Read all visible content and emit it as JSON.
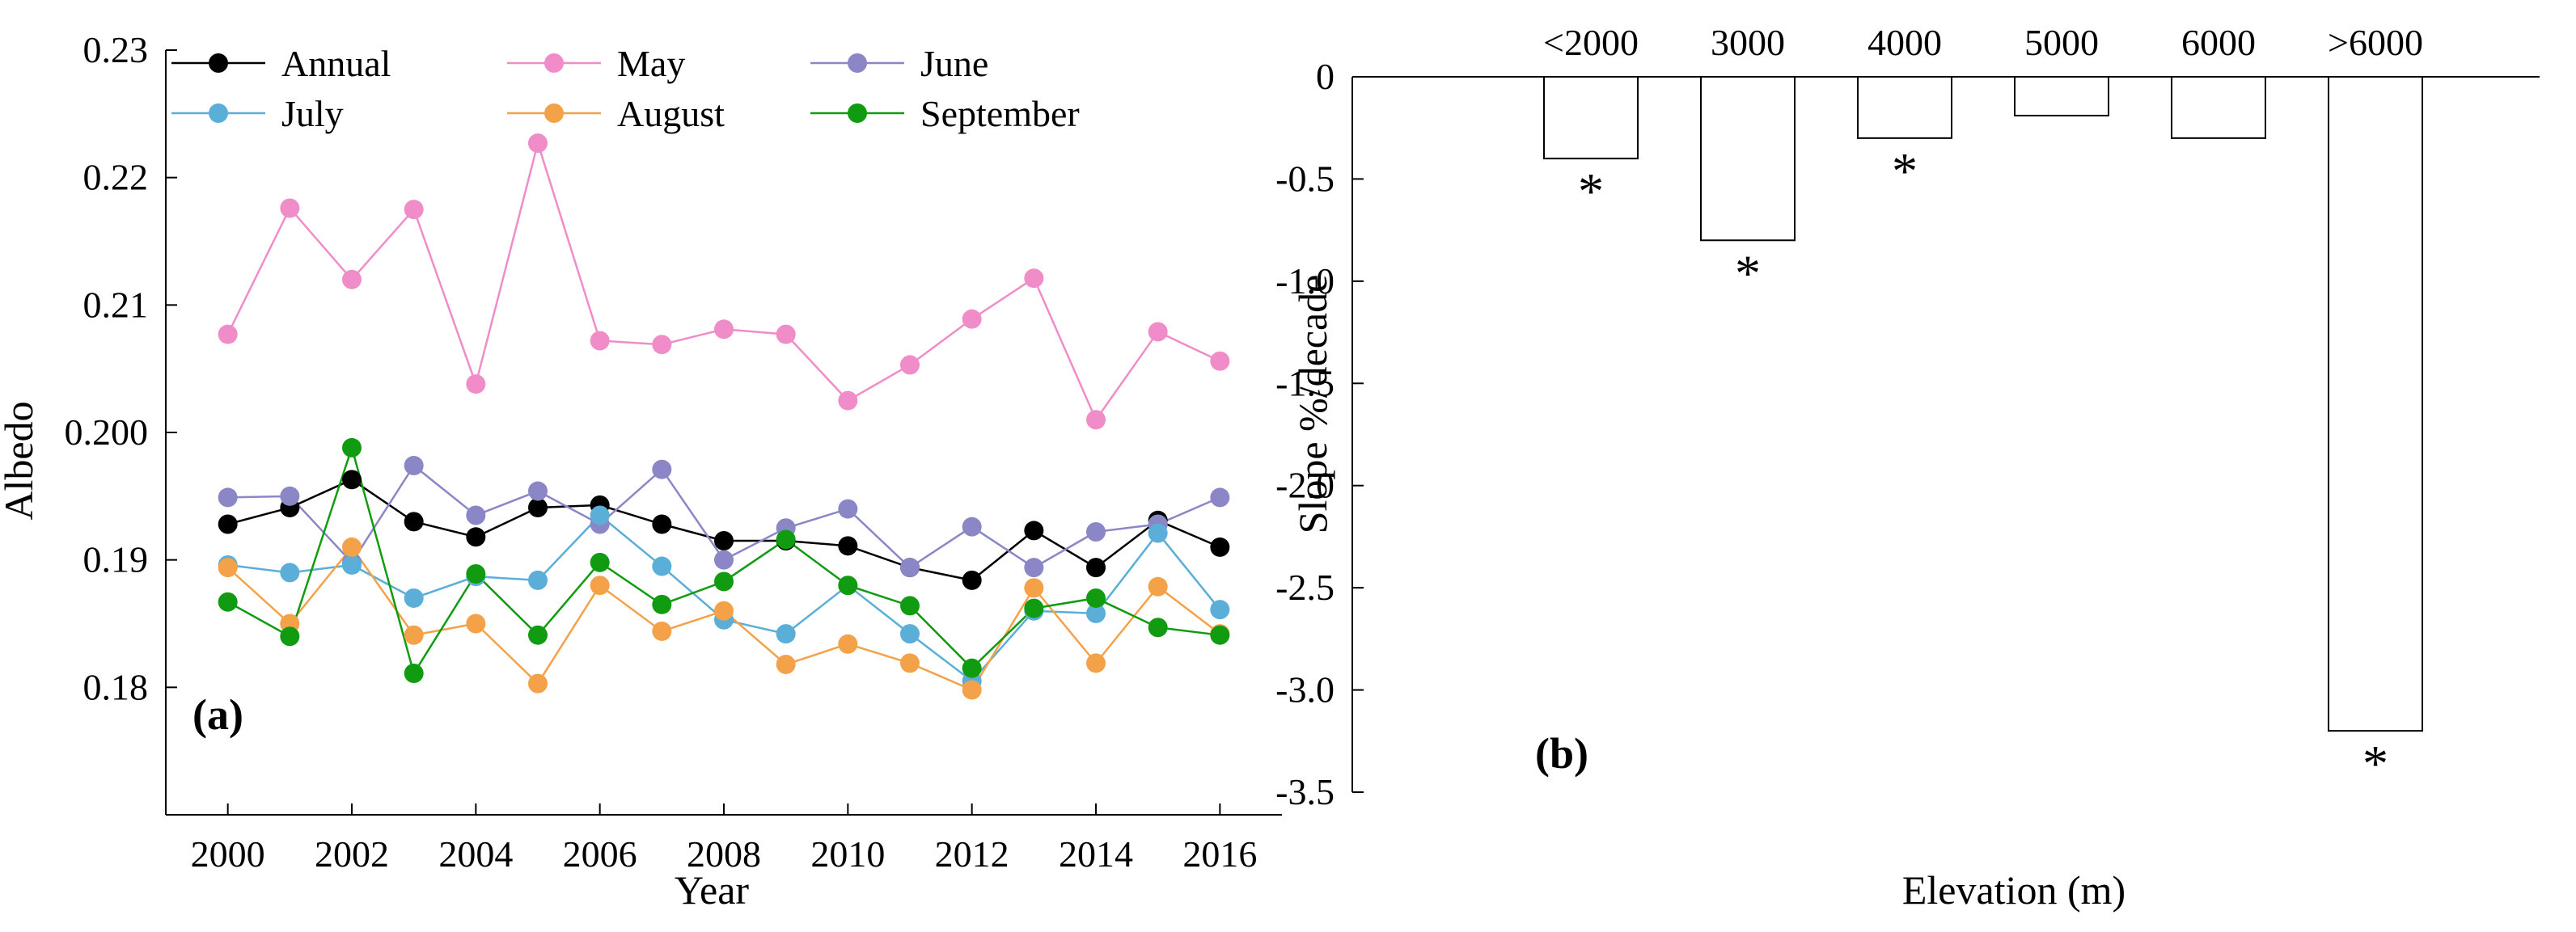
{
  "chart_data": [
    {
      "type": "line",
      "panel_label": "(a)",
      "xlabel": "Year",
      "ylabel": "Albedo",
      "xlim": [
        1999,
        2017
      ],
      "ylim": [
        0.17,
        0.23
      ],
      "x_ticks": [
        2000,
        2002,
        2004,
        2006,
        2008,
        2010,
        2012,
        2014,
        2016
      ],
      "y_ticks": [
        0.18,
        0.19,
        0.2,
        0.21,
        0.22,
        0.23
      ],
      "y_tick_labels": [
        "0.18",
        "0.19",
        "0.200",
        "0.21",
        "0.22",
        "0.23"
      ],
      "legend_placement": "top",
      "x": [
        2000,
        2001,
        2002,
        2003,
        2004,
        2005,
        2006,
        2007,
        2008,
        2009,
        2010,
        2011,
        2012,
        2013,
        2014,
        2015,
        2016
      ],
      "series": [
        {
          "name": "Annual",
          "color": "#000000",
          "values": [
            0.1928,
            0.1941,
            0.1963,
            0.193,
            0.1918,
            0.1941,
            0.1943,
            0.1928,
            0.1915,
            0.1915,
            0.1911,
            0.1894,
            0.1884,
            0.1923,
            0.1894,
            0.1931,
            0.191
          ]
        },
        {
          "name": "May",
          "color": "#f08cc8",
          "values": [
            0.2077,
            0.2176,
            0.212,
            0.2175,
            0.2038,
            0.2227,
            0.2072,
            0.2069,
            0.2081,
            0.2077,
            0.2025,
            0.2053,
            0.2089,
            0.2121,
            0.201,
            0.2079,
            0.2056
          ]
        },
        {
          "name": "June",
          "color": "#8b86c6",
          "values": [
            0.1949,
            0.195,
            0.1898,
            0.1974,
            0.1935,
            0.1954,
            0.1928,
            0.1971,
            0.19,
            0.1925,
            0.194,
            0.1894,
            0.1926,
            0.1894,
            0.1922,
            0.1928,
            0.1949
          ]
        },
        {
          "name": "July",
          "color": "#5aaed8",
          "values": [
            0.1896,
            0.189,
            0.1896,
            0.187,
            0.1887,
            0.1884,
            0.1935,
            0.1895,
            0.1853,
            0.1842,
            0.188,
            0.1842,
            0.1805,
            0.186,
            0.1858,
            0.1921,
            0.1861
          ]
        },
        {
          "name": "August",
          "color": "#f4a24a",
          "values": [
            0.1894,
            0.185,
            0.191,
            0.1841,
            0.185,
            0.1803,
            0.188,
            0.1844,
            0.186,
            0.1818,
            0.1834,
            0.1819,
            0.1798,
            0.1878,
            0.1819,
            0.1879,
            0.1842
          ]
        },
        {
          "name": "September",
          "color": "#119b11",
          "values": [
            0.1867,
            0.184,
            0.1988,
            0.1811,
            0.1889,
            0.1841,
            0.1898,
            0.1865,
            0.1883,
            0.1916,
            0.188,
            0.1864,
            0.1815,
            0.1862,
            0.187,
            0.1847,
            0.1841
          ]
        }
      ]
    },
    {
      "type": "bar",
      "panel_label": "(b)",
      "xlabel": "Elevation (m)",
      "ylabel": "Slope %/decade",
      "categories": [
        "<2000",
        "3000",
        "4000",
        "5000",
        "6000",
        ">6000"
      ],
      "values": [
        -0.4,
        -0.8,
        -0.3,
        -0.19,
        -0.3,
        -3.2
      ],
      "significant": [
        true,
        true,
        true,
        false,
        false,
        true
      ],
      "significance_marker": "*",
      "ylim": [
        -3.5,
        0
      ],
      "y_ticks": [
        0,
        -0.5,
        -1.0,
        -1.5,
        -2.0,
        -2.5,
        -3.0,
        -3.5
      ],
      "y_tick_labels": [
        "0",
        "-0.5",
        "-1.0",
        "-1.5",
        "-2.0",
        "-2.5",
        "-3.0",
        "-3.5"
      ],
      "category_labels_position": "top"
    }
  ]
}
